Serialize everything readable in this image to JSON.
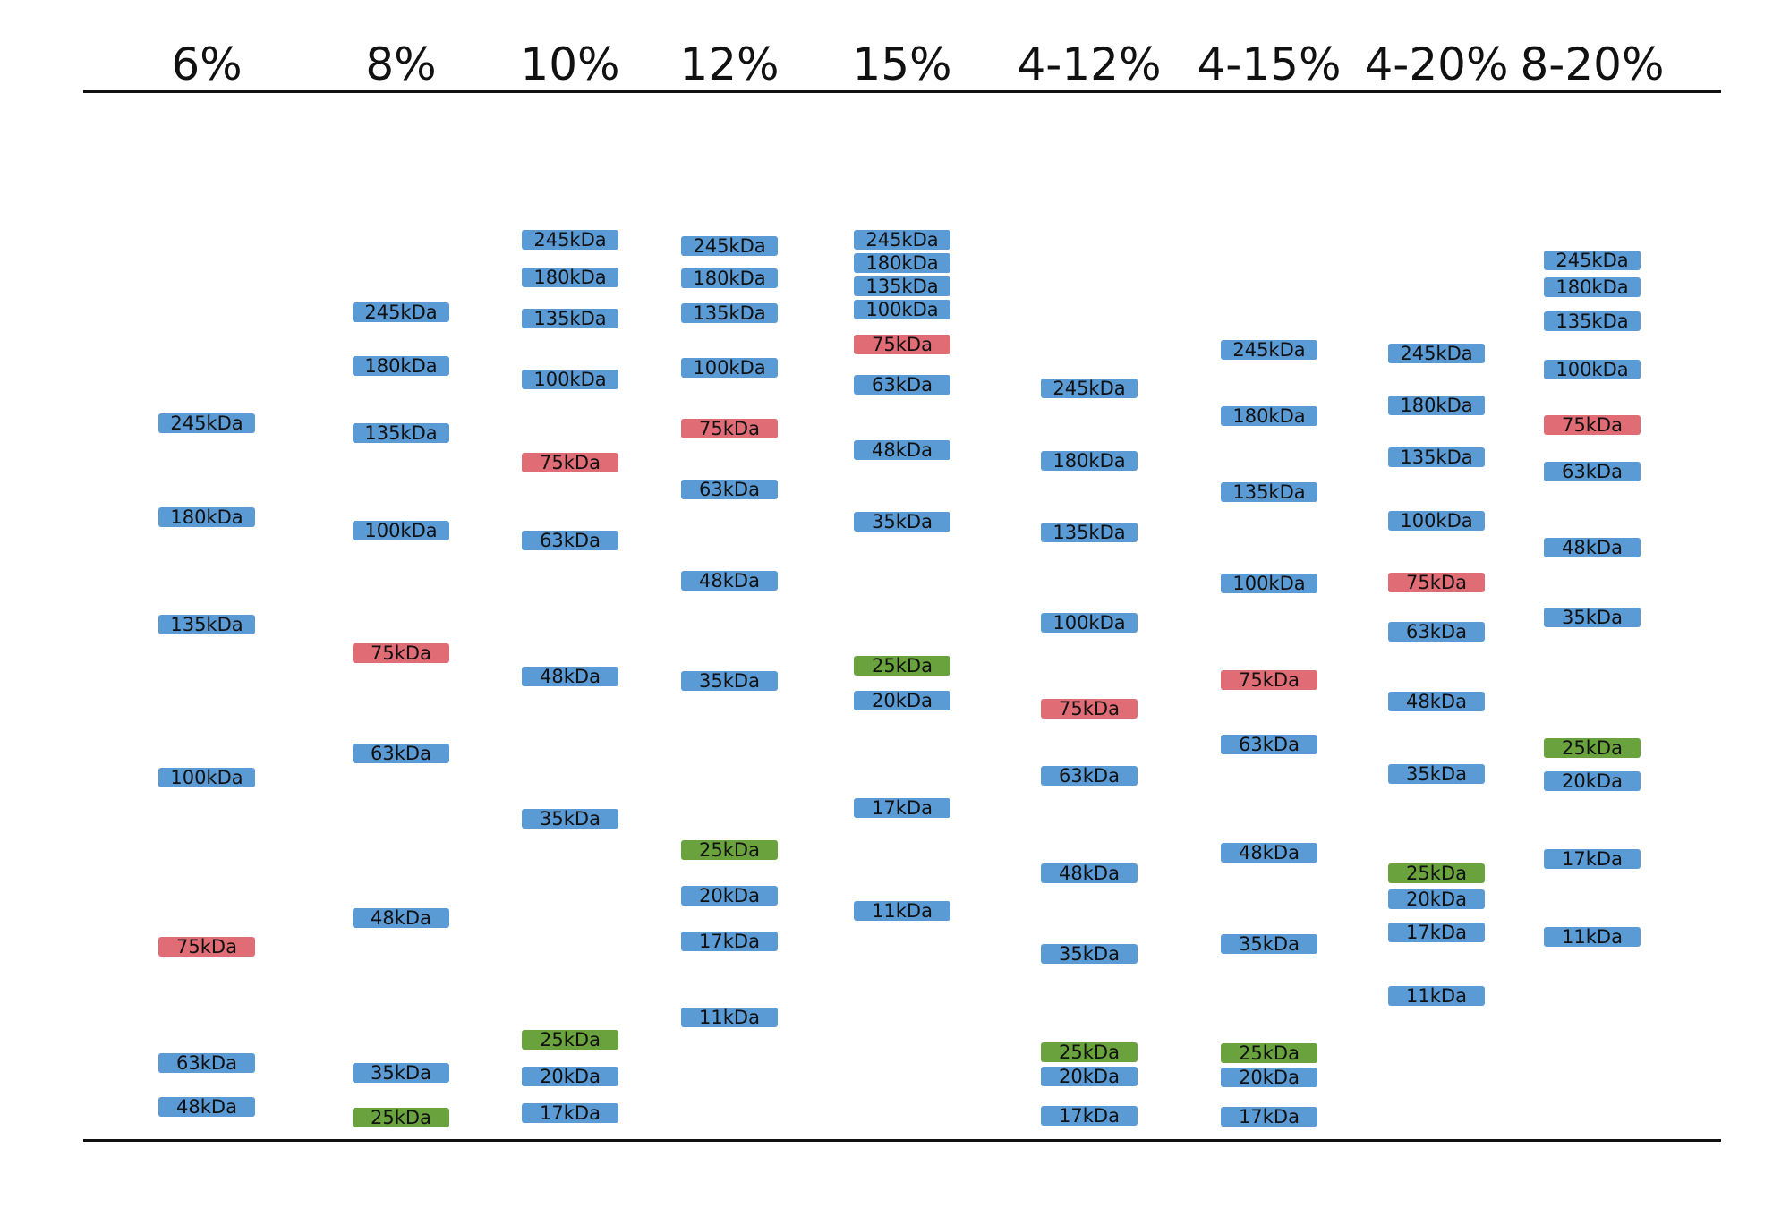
{
  "colors": {
    "standard": "#5b9bd5",
    "reference_75kDa": "#e06c75",
    "reference_25kDa": "#6aa33d"
  },
  "lanes": [
    {
      "label": "6%",
      "markers": [
        {
          "text": "245kDa",
          "kind": "standard",
          "mw": 245
        },
        {
          "text": "180kDa",
          "kind": "standard",
          "mw": 180
        },
        {
          "text": "135kDa",
          "kind": "standard",
          "mw": 135
        },
        {
          "text": "100kDa",
          "kind": "standard",
          "mw": 100
        },
        {
          "text": "75kDa",
          "kind": "reference_75kDa",
          "mw": 75
        },
        {
          "text": "63kDa",
          "kind": "standard",
          "mw": 63
        },
        {
          "text": "48kDa",
          "kind": "standard",
          "mw": 48
        }
      ]
    },
    {
      "label": "8%",
      "markers": [
        {
          "text": "245kDa",
          "kind": "standard",
          "mw": 245
        },
        {
          "text": "180kDa",
          "kind": "standard",
          "mw": 180
        },
        {
          "text": "135kDa",
          "kind": "standard",
          "mw": 135
        },
        {
          "text": "100kDa",
          "kind": "standard",
          "mw": 100
        },
        {
          "text": "75kDa",
          "kind": "reference_75kDa",
          "mw": 75
        },
        {
          "text": "63kDa",
          "kind": "standard",
          "mw": 63
        },
        {
          "text": "48kDa",
          "kind": "standard",
          "mw": 48
        },
        {
          "text": "35kDa",
          "kind": "standard",
          "mw": 35
        },
        {
          "text": "25kDa",
          "kind": "reference_25kDa",
          "mw": 25
        }
      ]
    },
    {
      "label": "10%",
      "markers": [
        {
          "text": "245kDa",
          "kind": "standard",
          "mw": 245
        },
        {
          "text": "180kDa",
          "kind": "standard",
          "mw": 180
        },
        {
          "text": "135kDa",
          "kind": "standard",
          "mw": 135
        },
        {
          "text": "100kDa",
          "kind": "standard",
          "mw": 100
        },
        {
          "text": "75kDa",
          "kind": "reference_75kDa",
          "mw": 75
        },
        {
          "text": "63kDa",
          "kind": "standard",
          "mw": 63
        },
        {
          "text": "48kDa",
          "kind": "standard",
          "mw": 48
        },
        {
          "text": "35kDa",
          "kind": "standard",
          "mw": 35
        },
        {
          "text": "25kDa",
          "kind": "reference_25kDa",
          "mw": 25
        },
        {
          "text": "20kDa",
          "kind": "standard",
          "mw": 20
        },
        {
          "text": "17kDa",
          "kind": "standard",
          "mw": 17
        }
      ]
    },
    {
      "label": "12%",
      "markers": [
        {
          "text": "245kDa",
          "kind": "standard",
          "mw": 245
        },
        {
          "text": "180kDa",
          "kind": "standard",
          "mw": 180
        },
        {
          "text": "135kDa",
          "kind": "standard",
          "mw": 135
        },
        {
          "text": "100kDa",
          "kind": "standard",
          "mw": 100
        },
        {
          "text": "75kDa",
          "kind": "reference_75kDa",
          "mw": 75
        },
        {
          "text": "63kDa",
          "kind": "standard",
          "mw": 63
        },
        {
          "text": "48kDa",
          "kind": "standard",
          "mw": 48
        },
        {
          "text": "35kDa",
          "kind": "standard",
          "mw": 35
        },
        {
          "text": "25kDa",
          "kind": "reference_25kDa",
          "mw": 25
        },
        {
          "text": "20kDa",
          "kind": "standard",
          "mw": 20
        },
        {
          "text": "17kDa",
          "kind": "standard",
          "mw": 17
        },
        {
          "text": "11kDa",
          "kind": "standard",
          "mw": 11
        }
      ]
    },
    {
      "label": "15%",
      "markers": [
        {
          "text": "245kDa",
          "kind": "standard",
          "mw": 245
        },
        {
          "text": "180kDa",
          "kind": "standard",
          "mw": 180
        },
        {
          "text": "135kDa",
          "kind": "standard",
          "mw": 135
        },
        {
          "text": "100kDa",
          "kind": "standard",
          "mw": 100
        },
        {
          "text": "75kDa",
          "kind": "reference_75kDa",
          "mw": 75
        },
        {
          "text": "63kDa",
          "kind": "standard",
          "mw": 63
        },
        {
          "text": "48kDa",
          "kind": "standard",
          "mw": 48
        },
        {
          "text": "35kDa",
          "kind": "standard",
          "mw": 35
        },
        {
          "text": "25kDa",
          "kind": "reference_25kDa",
          "mw": 25
        },
        {
          "text": "20kDa",
          "kind": "standard",
          "mw": 20
        },
        {
          "text": "17kDa",
          "kind": "standard",
          "mw": 17
        },
        {
          "text": "11kDa",
          "kind": "standard",
          "mw": 11
        }
      ]
    },
    {
      "label": "4-12%",
      "markers": [
        {
          "text": "245kDa",
          "kind": "standard",
          "mw": 245
        },
        {
          "text": "180kDa",
          "kind": "standard",
          "mw": 180
        },
        {
          "text": "135kDa",
          "kind": "standard",
          "mw": 135
        },
        {
          "text": "100kDa",
          "kind": "standard",
          "mw": 100
        },
        {
          "text": "75kDa",
          "kind": "reference_75kDa",
          "mw": 75
        },
        {
          "text": "63kDa",
          "kind": "standard",
          "mw": 63
        },
        {
          "text": "48kDa",
          "kind": "standard",
          "mw": 48
        },
        {
          "text": "35kDa",
          "kind": "standard",
          "mw": 35
        },
        {
          "text": "25kDa",
          "kind": "reference_25kDa",
          "mw": 25
        },
        {
          "text": "20kDa",
          "kind": "standard",
          "mw": 20
        },
        {
          "text": "17kDa",
          "kind": "standard",
          "mw": 17
        }
      ]
    },
    {
      "label": "4-15%",
      "markers": [
        {
          "text": "245kDa",
          "kind": "standard",
          "mw": 245
        },
        {
          "text": "180kDa",
          "kind": "standard",
          "mw": 180
        },
        {
          "text": "135kDa",
          "kind": "standard",
          "mw": 135
        },
        {
          "text": "100kDa",
          "kind": "standard",
          "mw": 100
        },
        {
          "text": "75kDa",
          "kind": "reference_75kDa",
          "mw": 75
        },
        {
          "text": "63kDa",
          "kind": "standard",
          "mw": 63
        },
        {
          "text": "48kDa",
          "kind": "standard",
          "mw": 48
        },
        {
          "text": "35kDa",
          "kind": "standard",
          "mw": 35
        },
        {
          "text": "25kDa",
          "kind": "reference_25kDa",
          "mw": 25
        },
        {
          "text": "20kDa",
          "kind": "standard",
          "mw": 20
        },
        {
          "text": "17kDa",
          "kind": "standard",
          "mw": 17
        }
      ]
    },
    {
      "label": "4-20%",
      "markers": [
        {
          "text": "245kDa",
          "kind": "standard",
          "mw": 245
        },
        {
          "text": "180kDa",
          "kind": "standard",
          "mw": 180
        },
        {
          "text": "135kDa",
          "kind": "standard",
          "mw": 135
        },
        {
          "text": "100kDa",
          "kind": "standard",
          "mw": 100
        },
        {
          "text": "75kDa",
          "kind": "reference_75kDa",
          "mw": 75
        },
        {
          "text": "63kDa",
          "kind": "standard",
          "mw": 63
        },
        {
          "text": "48kDa",
          "kind": "standard",
          "mw": 48
        },
        {
          "text": "35kDa",
          "kind": "standard",
          "mw": 35
        },
        {
          "text": "25kDa",
          "kind": "reference_25kDa",
          "mw": 25
        },
        {
          "text": "20kDa",
          "kind": "standard",
          "mw": 20
        },
        {
          "text": "17kDa",
          "kind": "standard",
          "mw": 17
        },
        {
          "text": "11kDa",
          "kind": "standard",
          "mw": 11
        }
      ]
    },
    {
      "label": "8-20%",
      "markers": [
        {
          "text": "245kDa",
          "kind": "standard",
          "mw": 245
        },
        {
          "text": "180kDa",
          "kind": "standard",
          "mw": 180
        },
        {
          "text": "135kDa",
          "kind": "standard",
          "mw": 135
        },
        {
          "text": "100kDa",
          "kind": "standard",
          "mw": 100
        },
        {
          "text": "75kDa",
          "kind": "reference_75kDa",
          "mw": 75
        },
        {
          "text": "63kDa",
          "kind": "standard",
          "mw": 63
        },
        {
          "text": "48kDa",
          "kind": "standard",
          "mw": 48
        },
        {
          "text": "35kDa",
          "kind": "standard",
          "mw": 35
        },
        {
          "text": "25kDa",
          "kind": "reference_25kDa",
          "mw": 25
        },
        {
          "text": "20kDa",
          "kind": "standard",
          "mw": 20
        },
        {
          "text": "17kDa",
          "kind": "standard",
          "mw": 17
        },
        {
          "text": "11kDa",
          "kind": "standard",
          "mw": 11
        }
      ]
    }
  ]
}
